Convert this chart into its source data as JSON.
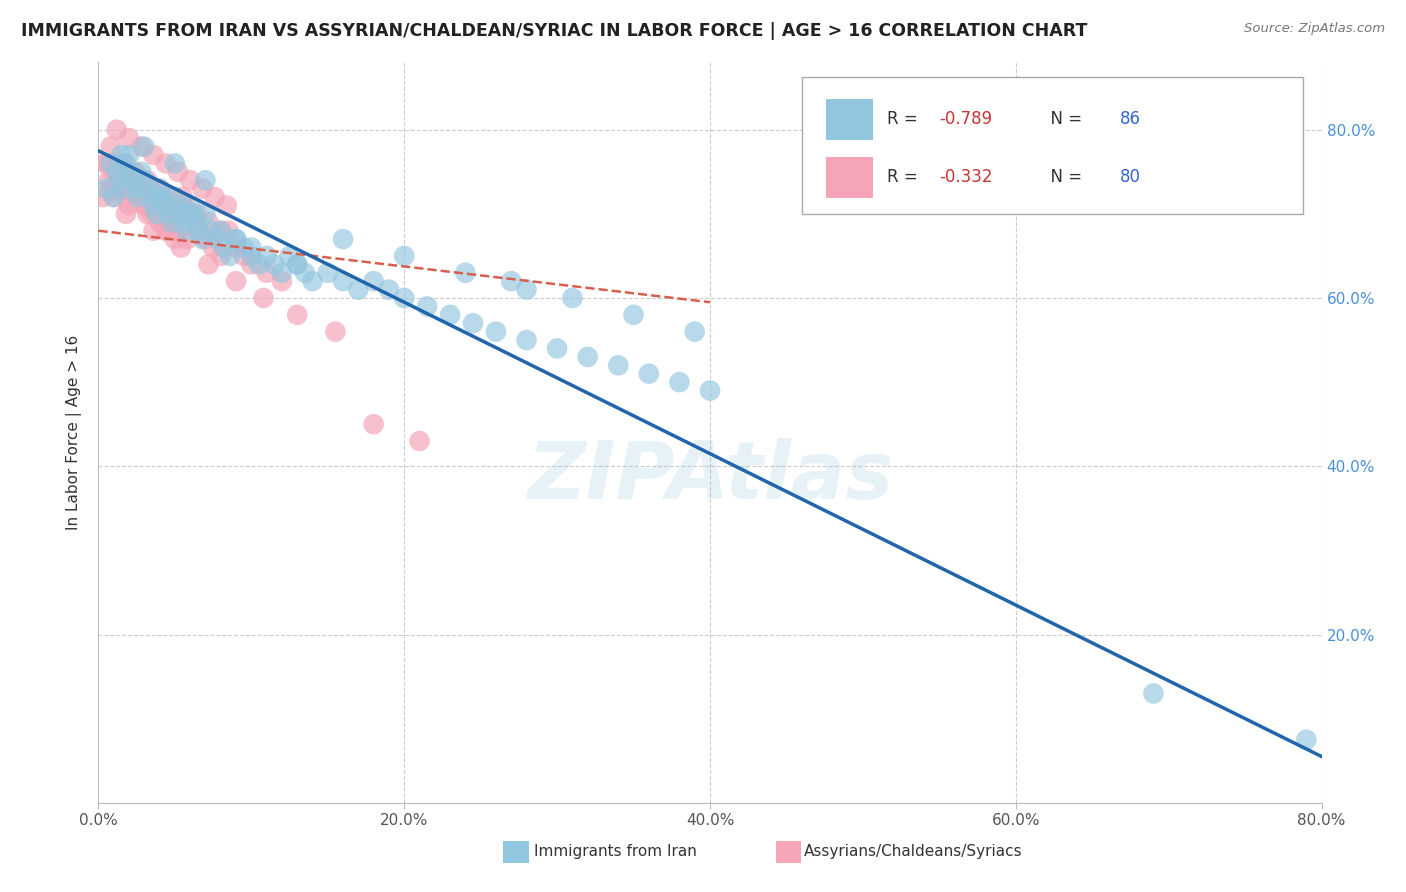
{
  "title": "IMMIGRANTS FROM IRAN VS ASSYRIAN/CHALDEAN/SYRIAC IN LABOR FORCE | AGE > 16 CORRELATION CHART",
  "source_text": "Source: ZipAtlas.com",
  "ylabel": "In Labor Force | Age > 16",
  "xlim": [
    0.0,
    0.8
  ],
  "ylim": [
    0.0,
    0.88
  ],
  "yticks": [
    0.0,
    0.2,
    0.4,
    0.6,
    0.8
  ],
  "xticks": [
    0.0,
    0.2,
    0.4,
    0.6,
    0.8
  ],
  "legend_R1": "-0.789",
  "legend_N1": "86",
  "legend_R2": "-0.332",
  "legend_N2": "80",
  "blue_color": "#92C5DE",
  "pink_color": "#F4A6B8",
  "line_blue": "#2166AC",
  "line_pink": "#D6604D",
  "background": "#ffffff",
  "watermark": "ZIPAtlas",
  "watermark_color": "#92C5DE",
  "legend_label1": "Immigrants from Iran",
  "legend_label2": "Assyrians/Chaldeans/Syriacs",
  "blue_scatter_x": [
    0.005,
    0.008,
    0.01,
    0.012,
    0.014,
    0.015,
    0.016,
    0.018,
    0.02,
    0.022,
    0.024,
    0.026,
    0.028,
    0.03,
    0.032,
    0.034,
    0.036,
    0.038,
    0.04,
    0.042,
    0.044,
    0.046,
    0.048,
    0.05,
    0.052,
    0.054,
    0.056,
    0.058,
    0.06,
    0.062,
    0.064,
    0.066,
    0.068,
    0.07,
    0.074,
    0.078,
    0.082,
    0.086,
    0.09,
    0.095,
    0.1,
    0.105,
    0.11,
    0.115,
    0.12,
    0.125,
    0.13,
    0.135,
    0.14,
    0.15,
    0.16,
    0.17,
    0.18,
    0.19,
    0.2,
    0.215,
    0.23,
    0.245,
    0.26,
    0.28,
    0.3,
    0.32,
    0.34,
    0.36,
    0.38,
    0.4,
    0.16,
    0.2,
    0.24,
    0.28,
    0.1,
    0.13,
    0.08,
    0.04,
    0.06,
    0.02,
    0.03,
    0.05,
    0.07,
    0.09,
    0.27,
    0.31,
    0.35,
    0.39,
    0.79,
    0.69
  ],
  "blue_scatter_y": [
    0.73,
    0.76,
    0.72,
    0.75,
    0.74,
    0.77,
    0.73,
    0.76,
    0.75,
    0.74,
    0.73,
    0.72,
    0.75,
    0.74,
    0.73,
    0.72,
    0.71,
    0.7,
    0.73,
    0.72,
    0.71,
    0.7,
    0.69,
    0.72,
    0.71,
    0.7,
    0.69,
    0.68,
    0.71,
    0.7,
    0.69,
    0.68,
    0.67,
    0.7,
    0.68,
    0.67,
    0.66,
    0.65,
    0.67,
    0.66,
    0.65,
    0.64,
    0.65,
    0.64,
    0.63,
    0.65,
    0.64,
    0.63,
    0.62,
    0.63,
    0.62,
    0.61,
    0.62,
    0.61,
    0.6,
    0.59,
    0.58,
    0.57,
    0.56,
    0.55,
    0.54,
    0.53,
    0.52,
    0.51,
    0.5,
    0.49,
    0.67,
    0.65,
    0.63,
    0.61,
    0.66,
    0.64,
    0.68,
    0.72,
    0.7,
    0.77,
    0.78,
    0.76,
    0.74,
    0.67,
    0.62,
    0.6,
    0.58,
    0.56,
    0.075,
    0.13
  ],
  "pink_scatter_x": [
    0.003,
    0.005,
    0.007,
    0.008,
    0.01,
    0.012,
    0.014,
    0.015,
    0.016,
    0.018,
    0.02,
    0.022,
    0.024,
    0.026,
    0.028,
    0.03,
    0.032,
    0.034,
    0.036,
    0.038,
    0.04,
    0.042,
    0.044,
    0.046,
    0.048,
    0.05,
    0.052,
    0.055,
    0.058,
    0.06,
    0.065,
    0.07,
    0.075,
    0.08,
    0.085,
    0.09,
    0.095,
    0.1,
    0.11,
    0.12,
    0.005,
    0.01,
    0.015,
    0.02,
    0.025,
    0.03,
    0.035,
    0.04,
    0.045,
    0.05,
    0.008,
    0.016,
    0.024,
    0.032,
    0.04,
    0.048,
    0.056,
    0.064,
    0.072,
    0.08,
    0.012,
    0.02,
    0.028,
    0.036,
    0.044,
    0.052,
    0.06,
    0.068,
    0.076,
    0.084,
    0.018,
    0.036,
    0.054,
    0.072,
    0.09,
    0.108,
    0.13,
    0.155,
    0.18,
    0.21
  ],
  "pink_scatter_y": [
    0.72,
    0.76,
    0.74,
    0.73,
    0.72,
    0.75,
    0.74,
    0.76,
    0.73,
    0.72,
    0.71,
    0.75,
    0.74,
    0.73,
    0.72,
    0.71,
    0.7,
    0.73,
    0.72,
    0.71,
    0.7,
    0.69,
    0.68,
    0.71,
    0.7,
    0.69,
    0.68,
    0.72,
    0.67,
    0.7,
    0.68,
    0.67,
    0.66,
    0.65,
    0.68,
    0.66,
    0.65,
    0.64,
    0.63,
    0.62,
    0.76,
    0.75,
    0.74,
    0.73,
    0.72,
    0.71,
    0.7,
    0.69,
    0.68,
    0.67,
    0.78,
    0.76,
    0.75,
    0.74,
    0.73,
    0.72,
    0.71,
    0.7,
    0.69,
    0.68,
    0.8,
    0.79,
    0.78,
    0.77,
    0.76,
    0.75,
    0.74,
    0.73,
    0.72,
    0.71,
    0.7,
    0.68,
    0.66,
    0.64,
    0.62,
    0.6,
    0.58,
    0.56,
    0.45,
    0.43
  ],
  "blue_line_x": [
    0.0,
    0.8
  ],
  "blue_line_y": [
    0.775,
    0.055
  ],
  "pink_line_x": [
    0.0,
    0.4
  ],
  "pink_line_y": [
    0.68,
    0.595
  ]
}
